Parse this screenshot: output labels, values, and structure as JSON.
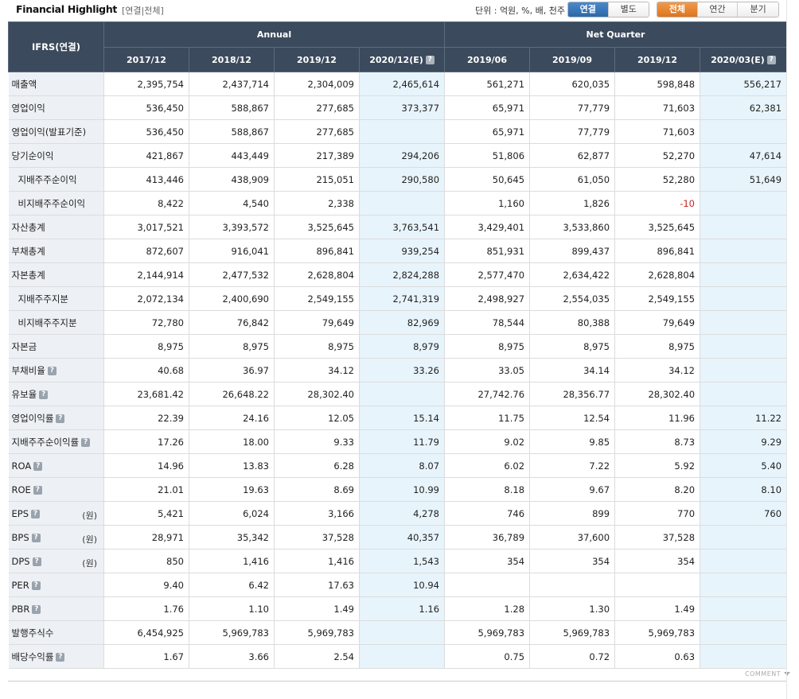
{
  "header": {
    "title": "Financial Highlight",
    "subtitle": "[연결|전체]",
    "unit_label": "단위 : 억원, %, 배, 천주",
    "toggle_consolidation": [
      {
        "label": "연결",
        "active": true
      },
      {
        "label": "별도",
        "active": false
      }
    ],
    "toggle_period": [
      {
        "label": "전체",
        "active": true
      },
      {
        "label": "연간",
        "active": false
      },
      {
        "label": "분기",
        "active": false
      }
    ]
  },
  "table": {
    "corner_label": "IFRS(연결)",
    "group_annual": "Annual",
    "group_quarter": "Net Quarter",
    "columns": [
      "2017/12",
      "2018/12",
      "2019/12",
      "2020/12(E)",
      "2019/06",
      "2019/09",
      "2019/12",
      "2020/03(E)"
    ],
    "rows": [
      {
        "label": "매출액",
        "sub": false,
        "help": false,
        "unit": "",
        "values": [
          "2,395,754",
          "2,437,714",
          "2,304,009",
          "2,465,614",
          "561,271",
          "620,035",
          "598,848",
          "556,217"
        ]
      },
      {
        "label": "영업이익",
        "sub": false,
        "help": false,
        "unit": "",
        "values": [
          "536,450",
          "588,867",
          "277,685",
          "373,377",
          "65,971",
          "77,779",
          "71,603",
          "62,381"
        ]
      },
      {
        "label": "영업이익(발표기준)",
        "sub": false,
        "help": false,
        "unit": "",
        "values": [
          "536,450",
          "588,867",
          "277,685",
          "",
          "65,971",
          "77,779",
          "71,603",
          ""
        ]
      },
      {
        "label": "당기순이익",
        "sub": false,
        "help": false,
        "unit": "",
        "values": [
          "421,867",
          "443,449",
          "217,389",
          "294,206",
          "51,806",
          "62,877",
          "52,270",
          "47,614"
        ]
      },
      {
        "label": "지배주주순이익",
        "sub": true,
        "help": false,
        "unit": "",
        "values": [
          "413,446",
          "438,909",
          "215,051",
          "290,580",
          "50,645",
          "61,050",
          "52,280",
          "51,649"
        ]
      },
      {
        "label": "비지배주주순이익",
        "sub": true,
        "help": false,
        "unit": "",
        "values": [
          "8,422",
          "4,540",
          "2,338",
          "",
          "1,160",
          "1,826",
          "-10",
          ""
        ]
      },
      {
        "label": "자산총계",
        "sub": false,
        "help": false,
        "unit": "",
        "values": [
          "3,017,521",
          "3,393,572",
          "3,525,645",
          "3,763,541",
          "3,429,401",
          "3,533,860",
          "3,525,645",
          ""
        ]
      },
      {
        "label": "부채총계",
        "sub": false,
        "help": false,
        "unit": "",
        "values": [
          "872,607",
          "916,041",
          "896,841",
          "939,254",
          "851,931",
          "899,437",
          "896,841",
          ""
        ]
      },
      {
        "label": "자본총계",
        "sub": false,
        "help": false,
        "unit": "",
        "values": [
          "2,144,914",
          "2,477,532",
          "2,628,804",
          "2,824,288",
          "2,577,470",
          "2,634,422",
          "2,628,804",
          ""
        ]
      },
      {
        "label": "지배주주지분",
        "sub": true,
        "help": false,
        "unit": "",
        "values": [
          "2,072,134",
          "2,400,690",
          "2,549,155",
          "2,741,319",
          "2,498,927",
          "2,554,035",
          "2,549,155",
          ""
        ]
      },
      {
        "label": "비지배주주지분",
        "sub": true,
        "help": false,
        "unit": "",
        "values": [
          "72,780",
          "76,842",
          "79,649",
          "82,969",
          "78,544",
          "80,388",
          "79,649",
          ""
        ]
      },
      {
        "label": "자본금",
        "sub": false,
        "help": false,
        "unit": "",
        "values": [
          "8,975",
          "8,975",
          "8,975",
          "8,979",
          "8,975",
          "8,975",
          "8,975",
          ""
        ]
      },
      {
        "label": "부채비율",
        "sub": false,
        "help": true,
        "unit": "",
        "values": [
          "40.68",
          "36.97",
          "34.12",
          "33.26",
          "33.05",
          "34.14",
          "34.12",
          ""
        ]
      },
      {
        "label": "유보율",
        "sub": false,
        "help": true,
        "unit": "",
        "values": [
          "23,681.42",
          "26,648.22",
          "28,302.40",
          "",
          "27,742.76",
          "28,356.77",
          "28,302.40",
          ""
        ]
      },
      {
        "label": "영업이익률",
        "sub": false,
        "help": true,
        "unit": "",
        "values": [
          "22.39",
          "24.16",
          "12.05",
          "15.14",
          "11.75",
          "12.54",
          "11.96",
          "11.22"
        ]
      },
      {
        "label": "지배주주순이익률",
        "sub": false,
        "help": true,
        "unit": "",
        "values": [
          "17.26",
          "18.00",
          "9.33",
          "11.79",
          "9.02",
          "9.85",
          "8.73",
          "9.29"
        ]
      },
      {
        "label": "ROA",
        "sub": false,
        "help": true,
        "unit": "",
        "values": [
          "14.96",
          "13.83",
          "6.28",
          "8.07",
          "6.02",
          "7.22",
          "5.92",
          "5.40"
        ]
      },
      {
        "label": "ROE",
        "sub": false,
        "help": true,
        "unit": "",
        "values": [
          "21.01",
          "19.63",
          "8.69",
          "10.99",
          "8.18",
          "9.67",
          "8.20",
          "8.10"
        ]
      },
      {
        "label": "EPS",
        "sub": false,
        "help": true,
        "unit": "(원)",
        "values": [
          "5,421",
          "6,024",
          "3,166",
          "4,278",
          "746",
          "899",
          "770",
          "760"
        ]
      },
      {
        "label": "BPS",
        "sub": false,
        "help": true,
        "unit": "(원)",
        "values": [
          "28,971",
          "35,342",
          "37,528",
          "40,357",
          "36,789",
          "37,600",
          "37,528",
          ""
        ]
      },
      {
        "label": "DPS",
        "sub": false,
        "help": true,
        "unit": "(원)",
        "values": [
          "850",
          "1,416",
          "1,416",
          "1,543",
          "354",
          "354",
          "354",
          ""
        ]
      },
      {
        "label": "PER",
        "sub": false,
        "help": true,
        "unit": "",
        "values": [
          "9.40",
          "6.42",
          "17.63",
          "10.94",
          "",
          "",
          "",
          ""
        ]
      },
      {
        "label": "PBR",
        "sub": false,
        "help": true,
        "unit": "",
        "values": [
          "1.76",
          "1.10",
          "1.49",
          "1.16",
          "1.28",
          "1.30",
          "1.49",
          ""
        ]
      },
      {
        "label": "발행주식수",
        "sub": false,
        "help": false,
        "unit": "",
        "values": [
          "6,454,925",
          "5,969,783",
          "5,969,783",
          "",
          "5,969,783",
          "5,969,783",
          "5,969,783",
          ""
        ]
      },
      {
        "label": "배당수익률",
        "sub": false,
        "help": true,
        "unit": "",
        "values": [
          "1.67",
          "3.66",
          "2.54",
          "",
          "0.75",
          "0.72",
          "0.63",
          ""
        ]
      }
    ]
  },
  "footer": {
    "comment_label": "COMMENT"
  },
  "colors": {
    "header_bg": "#3b4a5c",
    "estimate_bg": "#e8f4fb",
    "label_bg": "#edf1f5",
    "toggle_blue": "#2d68a8",
    "toggle_orange": "#dd7420",
    "negative": "#cc2222"
  },
  "icons": {
    "help": "question-icon",
    "comment": "chevron-down-icon"
  }
}
